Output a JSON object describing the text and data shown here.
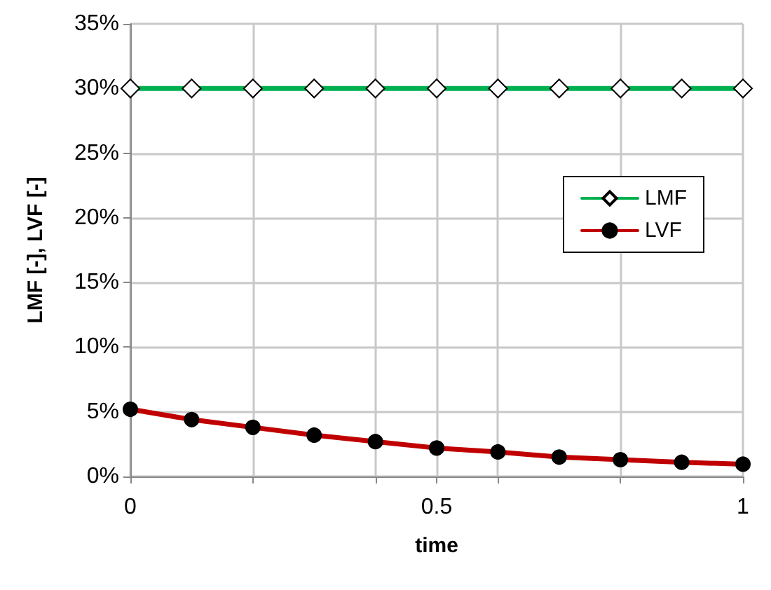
{
  "chart_data": {
    "type": "line",
    "xlabel": "time",
    "ylabel": "LMF [-], LVF [-]",
    "x": [
      0,
      0.1,
      0.2,
      0.3,
      0.4,
      0.5,
      0.6,
      0.7,
      0.8,
      0.9,
      1
    ],
    "series": [
      {
        "name": "LMF",
        "color": "#00b050",
        "marker": "diamond",
        "values": [
          30,
          30,
          30,
          30,
          30,
          30,
          30,
          30,
          30,
          30,
          30
        ]
      },
      {
        "name": "LVF",
        "color": "#c00000",
        "marker": "circle",
        "values": [
          5.2,
          4.4,
          3.8,
          3.2,
          2.7,
          2.2,
          1.9,
          1.5,
          1.3,
          1.1,
          0.95
        ]
      }
    ],
    "xlim": [
      0,
      1
    ],
    "xticks": [
      0,
      {
        "value": 0.2,
        "label": null
      },
      {
        "value": 0.4,
        "label": null
      },
      0.5,
      {
        "value": 0.6,
        "label": null
      },
      {
        "value": 0.8,
        "label": null
      },
      1
    ],
    "ylim": [
      0,
      35
    ],
    "yticks": [
      {
        "value": 0,
        "label": "0%"
      },
      {
        "value": 5,
        "label": "5%"
      },
      {
        "value": 10,
        "label": "10%"
      },
      {
        "value": 15,
        "label": "15%"
      },
      {
        "value": 20,
        "label": "20%"
      },
      {
        "value": 25,
        "label": "25%"
      },
      {
        "value": 30,
        "label": "30%"
      },
      {
        "value": 35,
        "label": "35%"
      }
    ],
    "grid": true,
    "legend": "top right",
    "line_style": "solid"
  }
}
